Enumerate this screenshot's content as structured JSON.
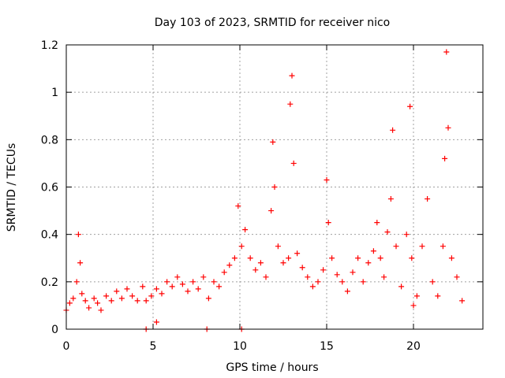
{
  "chart_data": {
    "type": "scatter",
    "title": "Day 103 of 2023, SRMTID for receiver nico",
    "xlabel": "GPS time / hours",
    "ylabel": "SRMTID / TECUs",
    "xlim": [
      0,
      24
    ],
    "ylim": [
      0,
      1.2
    ],
    "x_ticks": [
      0,
      5,
      10,
      15,
      20
    ],
    "x_tick_labels": [
      "0",
      "5",
      "10",
      "15",
      "20"
    ],
    "y_ticks": [
      0,
      0.2,
      0.4,
      0.6,
      0.8,
      1.0,
      1.2
    ],
    "y_tick_labels": [
      "0",
      "0.2",
      "0.4",
      "0.6",
      "0.8",
      "1",
      "1.2"
    ],
    "grid": true,
    "marker": "+",
    "color": "#ff0000",
    "series": [
      {
        "name": "SRMTID",
        "x": [
          0.0,
          0.2,
          0.4,
          0.6,
          0.7,
          0.8,
          0.9,
          1.1,
          1.3,
          1.6,
          1.8,
          2.0,
          2.3,
          2.6,
          2.9,
          3.2,
          3.5,
          3.8,
          4.1,
          4.4,
          4.6,
          4.9,
          5.2,
          5.5,
          5.8,
          6.1,
          6.4,
          6.7,
          7.0,
          7.3,
          7.6,
          7.9,
          8.2,
          8.5,
          8.8,
          9.1,
          9.4,
          9.7,
          9.9,
          10.1,
          10.3,
          10.6,
          10.9,
          11.2,
          11.5,
          11.8,
          11.9,
          12.0,
          12.2,
          12.5,
          12.8,
          12.9,
          13.0,
          13.1,
          13.3,
          13.6,
          13.9,
          14.2,
          14.5,
          14.8,
          15.0,
          15.1,
          15.3,
          15.6,
          15.9,
          16.2,
          16.5,
          16.8,
          17.1,
          17.4,
          17.7,
          17.9,
          18.1,
          18.3,
          18.5,
          18.7,
          18.8,
          19.0,
          19.3,
          19.6,
          19.8,
          19.9,
          20.0,
          20.2,
          20.5,
          20.8,
          21.1,
          21.4,
          21.7,
          21.8,
          21.9,
          22.0,
          22.2,
          22.5,
          22.8,
          4.6,
          5.2,
          8.1,
          10.1
        ],
        "y": [
          0.08,
          0.11,
          0.13,
          0.2,
          0.4,
          0.28,
          0.15,
          0.12,
          0.09,
          0.13,
          0.11,
          0.08,
          0.14,
          0.12,
          0.16,
          0.13,
          0.17,
          0.14,
          0.12,
          0.18,
          0.12,
          0.14,
          0.17,
          0.15,
          0.2,
          0.18,
          0.22,
          0.19,
          0.16,
          0.2,
          0.17,
          0.22,
          0.13,
          0.2,
          0.18,
          0.24,
          0.27,
          0.3,
          0.52,
          0.35,
          0.42,
          0.3,
          0.25,
          0.28,
          0.22,
          0.5,
          0.79,
          0.6,
          0.35,
          0.28,
          0.3,
          0.95,
          1.07,
          0.7,
          0.32,
          0.26,
          0.22,
          0.18,
          0.2,
          0.25,
          0.63,
          0.45,
          0.3,
          0.23,
          0.2,
          0.16,
          0.24,
          0.3,
          0.2,
          0.28,
          0.33,
          0.45,
          0.3,
          0.22,
          0.41,
          0.55,
          0.84,
          0.35,
          0.18,
          0.4,
          0.94,
          0.3,
          0.1,
          0.14,
          0.35,
          0.55,
          0.2,
          0.14,
          0.35,
          0.72,
          1.17,
          0.85,
          0.3,
          0.22,
          0.12,
          0.0,
          0.03,
          0.0,
          0.0
        ]
      }
    ]
  }
}
